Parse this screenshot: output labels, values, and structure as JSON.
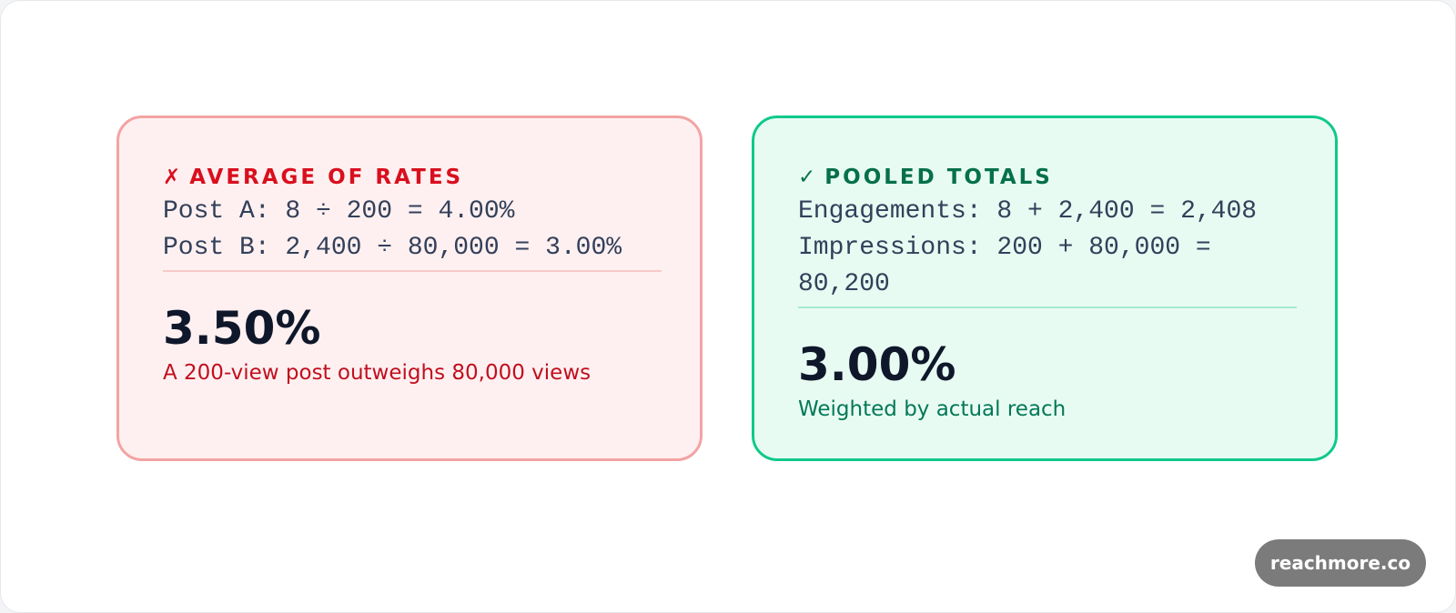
{
  "cards": [
    {
      "variant": "bad",
      "icon": "x-mark-icon",
      "mark": "✗",
      "heading": "AVERAGE OF RATES",
      "lines": [
        "Post A: 8 ÷ 200 = 4.00%",
        "Post B: 2,400 ÷ 80,000 = 3.00%"
      ],
      "result": "3.50%",
      "caption": "A 200-view post outweighs 80,000 views",
      "accent_color": "#d90f1e",
      "border_color": "#f3a3a3",
      "background_color": "#fef0f0"
    },
    {
      "variant": "good",
      "icon": "check-mark-icon",
      "mark": "✓",
      "heading": "POOLED TOTALS",
      "lines": [
        "Engagements: 8 + 2,400 = 2,408",
        "Impressions: 200 + 80,000 = 80,200"
      ],
      "result": "3.00%",
      "caption": "Weighted by actual reach",
      "accent_color": "#05704c",
      "border_color": "#10c98a",
      "background_color": "#e8fbf2"
    }
  ],
  "brand": {
    "label": "reachmore.co",
    "color": "#7b7b7b"
  }
}
